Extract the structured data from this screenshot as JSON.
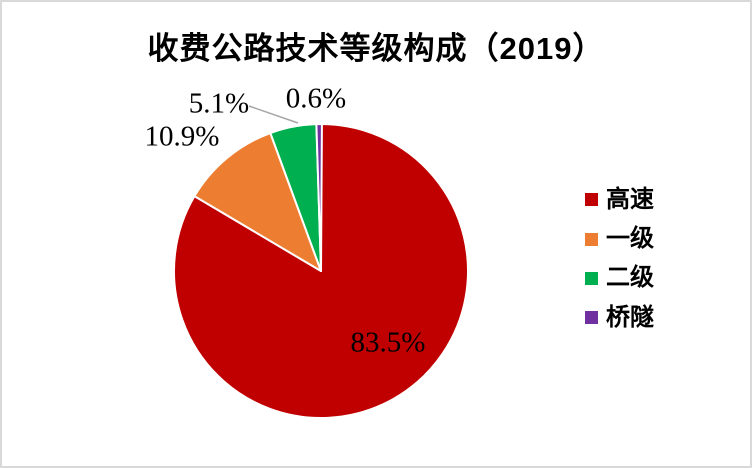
{
  "window": {
    "background": "#FFFFFF",
    "border_color": "#D9D9D9"
  },
  "chart_data": {
    "type": "pie",
    "title": "收费公路技术等级构成（2019）",
    "categories": [
      "高速",
      "一级",
      "二级",
      "桥隧"
    ],
    "values": [
      83.5,
      10.9,
      5.1,
      0.6
    ],
    "labels": [
      "83.5%",
      "10.9%",
      "5.1%",
      "0.6%"
    ],
    "colors": [
      "#C00000",
      "#ED7D31",
      "#00B050",
      "#7030A0"
    ],
    "legend_position": "right",
    "start_angle_deg": 0,
    "direction": "clockwise",
    "slice_border_color": "#FFFFFF",
    "leader_line_color": "#A6A6A6",
    "label_color": "#000000",
    "title_color": "#000000"
  }
}
